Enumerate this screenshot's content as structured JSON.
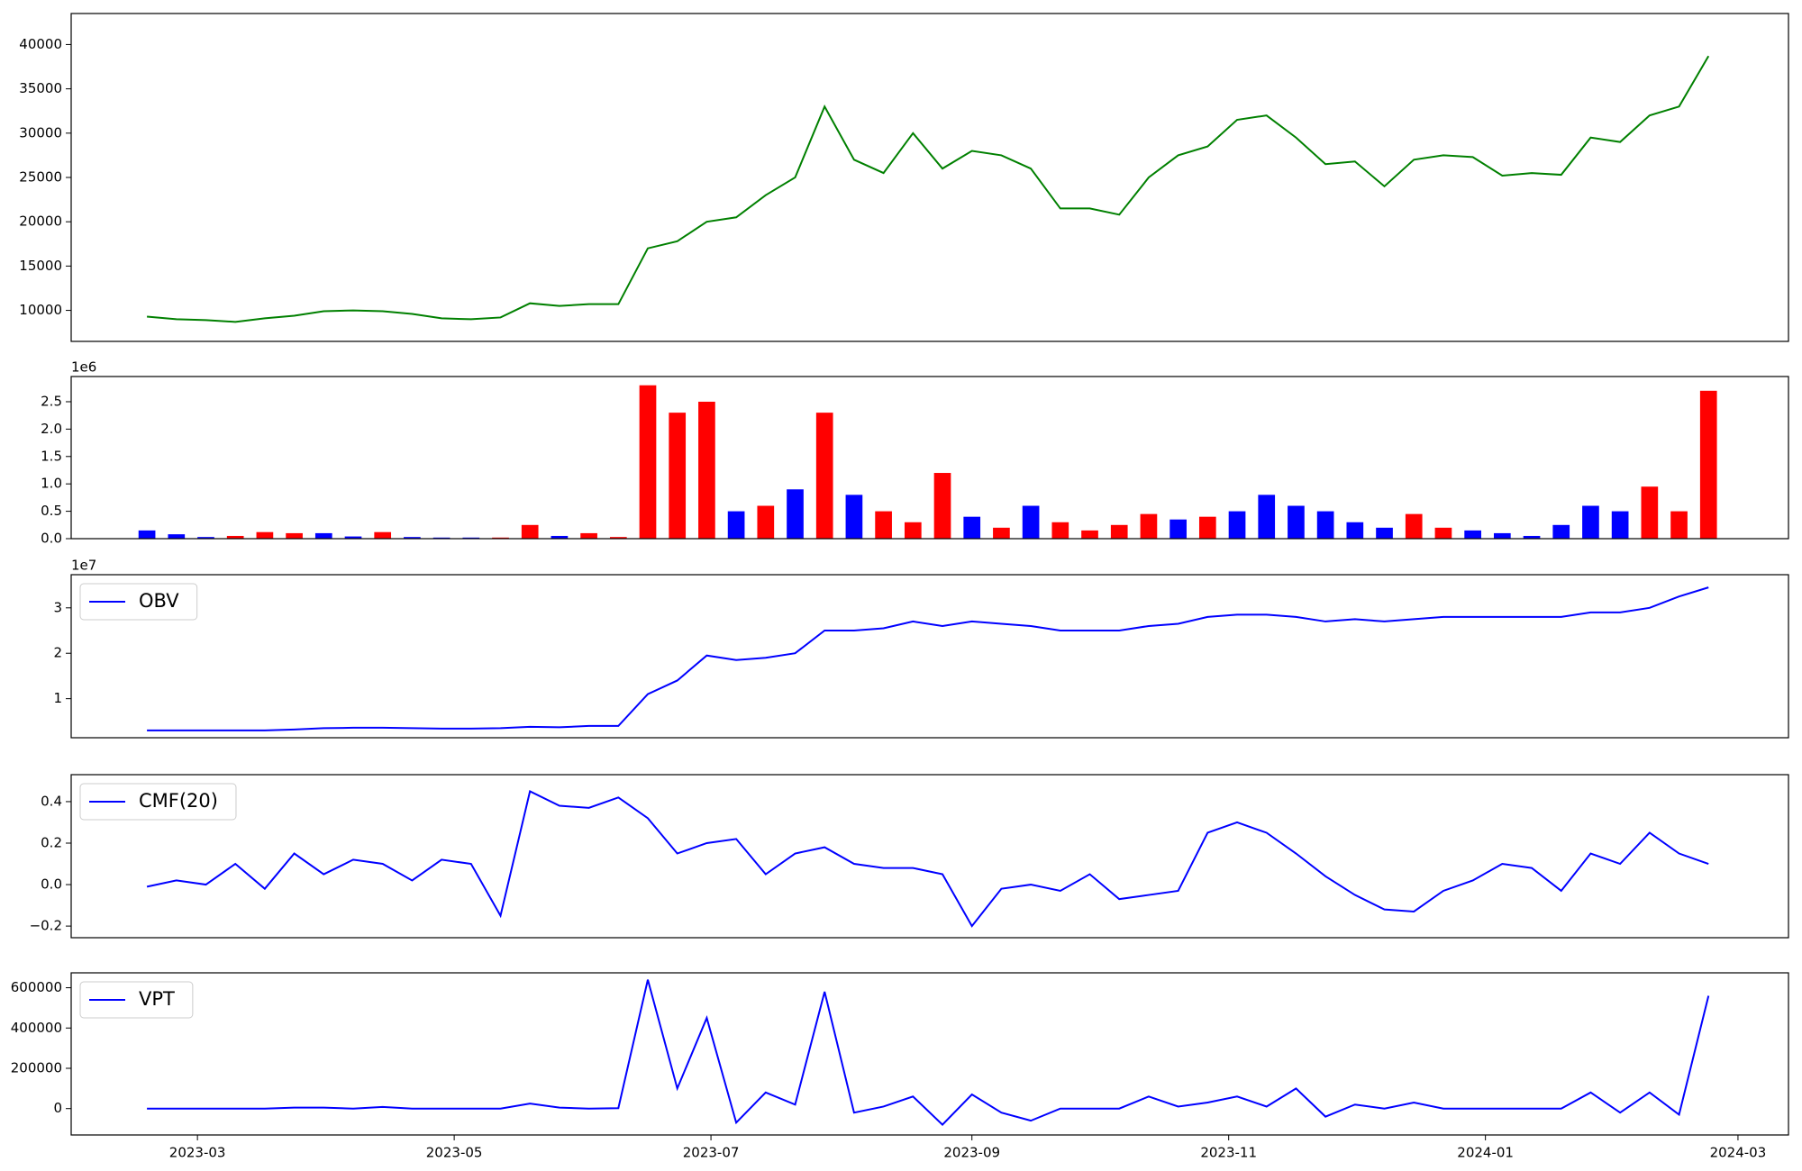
{
  "chart_data": [
    {
      "type": "line",
      "xlim": [
        19387,
        19795
      ],
      "ylim": [
        6500,
        43500
      ],
      "yticks": [
        10000,
        15000,
        20000,
        25000,
        30000,
        35000,
        40000
      ],
      "x": [
        19405,
        19412,
        19419,
        19426,
        19433,
        19440,
        19447,
        19454,
        19461,
        19468,
        19475,
        19482,
        19489,
        19496,
        19503,
        19510,
        19517,
        19524,
        19531,
        19538,
        19545,
        19552,
        19559,
        19566,
        19573,
        19580,
        19587,
        19594,
        19601,
        19608,
        19615,
        19622,
        19629,
        19636,
        19643,
        19650,
        19657,
        19664,
        19671,
        19678,
        19685,
        19692,
        19699,
        19706,
        19713,
        19720,
        19727,
        19734,
        19741,
        19748,
        19755,
        19762,
        19769,
        19776
      ],
      "series": [
        {
          "color": "#008000",
          "values": [
            9300,
            9000,
            8900,
            8700,
            9100,
            9400,
            9900,
            10000,
            9900,
            9600,
            9100,
            9000,
            9200,
            10800,
            10500,
            10700,
            10700,
            17000,
            17800,
            20000,
            20500,
            23000,
            25000,
            33000,
            27000,
            25500,
            30000,
            26000,
            28000,
            27500,
            26000,
            21500,
            21500,
            20800,
            25000,
            27500,
            28500,
            31500,
            32000,
            29500,
            26500,
            26800,
            24000,
            27000,
            27500,
            27300,
            25200,
            25500,
            25300,
            29500,
            29000,
            32000,
            33000,
            38700
          ]
        }
      ]
    },
    {
      "type": "bar",
      "xlim": [
        19387,
        19795
      ],
      "ylim": [
        0,
        2.96
      ],
      "offset_label": "1e6",
      "yticks": [
        {
          "value": 0,
          "label": "0.0"
        },
        0.5,
        {
          "value": 1,
          "label": "1.0"
        },
        1.5,
        {
          "value": 2,
          "label": "2.0"
        },
        2.5
      ],
      "x": [
        19405,
        19412,
        19419,
        19426,
        19433,
        19440,
        19447,
        19454,
        19461,
        19468,
        19475,
        19482,
        19489,
        19496,
        19503,
        19510,
        19517,
        19524,
        19531,
        19538,
        19545,
        19552,
        19559,
        19566,
        19573,
        19580,
        19587,
        19594,
        19601,
        19608,
        19615,
        19622,
        19629,
        19636,
        19643,
        19650,
        19657,
        19664,
        19671,
        19678,
        19685,
        19692,
        19699,
        19706,
        19713,
        19720,
        19727,
        19734,
        19741,
        19748,
        19755,
        19762,
        19769,
        19776
      ],
      "values": [
        0.15,
        0.08,
        0.03,
        0.05,
        0.12,
        0.1,
        0.1,
        0.04,
        0.12,
        0.03,
        0.02,
        0.02,
        0.02,
        0.25,
        0.05,
        0.1,
        0.03,
        2.8,
        2.3,
        2.5,
        0.5,
        0.6,
        0.9,
        2.3,
        0.8,
        0.5,
        0.3,
        1.2,
        0.4,
        0.2,
        0.6,
        0.3,
        0.15,
        0.25,
        0.45,
        0.35,
        0.4,
        0.5,
        0.8,
        0.6,
        0.5,
        0.3,
        0.2,
        0.45,
        0.2,
        0.15,
        0.1,
        0.05,
        0.25,
        0.6,
        0.5,
        0.95,
        0.5,
        2.7
      ],
      "colors": [
        "blue",
        "blue",
        "blue",
        "red",
        "red",
        "red",
        "blue",
        "blue",
        "red",
        "blue",
        "blue",
        "blue",
        "red",
        "red",
        "blue",
        "red",
        "red",
        "red",
        "red",
        "red",
        "blue",
        "red",
        "blue",
        "red",
        "blue",
        "red",
        "red",
        "red",
        "blue",
        "red",
        "blue",
        "red",
        "red",
        "red",
        "red",
        "blue",
        "red",
        "blue",
        "blue",
        "blue",
        "blue",
        "blue",
        "blue",
        "red",
        "red",
        "blue",
        "blue",
        "blue",
        "blue",
        "blue",
        "blue",
        "red",
        "red",
        "red"
      ]
    },
    {
      "type": "line",
      "xlim": [
        19387,
        19795
      ],
      "ylim": [
        0.14,
        3.73
      ],
      "offset_label": "1e7",
      "yticks": [
        1,
        2,
        3
      ],
      "legend": "upper left",
      "x": [
        19405,
        19412,
        19419,
        19426,
        19433,
        19440,
        19447,
        19454,
        19461,
        19468,
        19475,
        19482,
        19489,
        19496,
        19503,
        19510,
        19517,
        19524,
        19531,
        19538,
        19545,
        19552,
        19559,
        19566,
        19573,
        19580,
        19587,
        19594,
        19601,
        19608,
        19615,
        19622,
        19629,
        19636,
        19643,
        19650,
        19657,
        19664,
        19671,
        19678,
        19685,
        19692,
        19699,
        19706,
        19713,
        19720,
        19727,
        19734,
        19741,
        19748,
        19755,
        19762,
        19769,
        19776
      ],
      "series": [
        {
          "name": "OBV",
          "color": "#0000ff",
          "values": [
            0.3,
            0.3,
            0.3,
            0.3,
            0.3,
            0.32,
            0.35,
            0.36,
            0.36,
            0.35,
            0.34,
            0.34,
            0.35,
            0.38,
            0.37,
            0.4,
            0.4,
            1.1,
            1.4,
            1.95,
            1.85,
            1.9,
            2.0,
            2.5,
            2.5,
            2.55,
            2.7,
            2.6,
            2.7,
            2.65,
            2.6,
            2.5,
            2.5,
            2.5,
            2.6,
            2.65,
            2.8,
            2.85,
            2.85,
            2.8,
            2.7,
            2.75,
            2.7,
            2.75,
            2.8,
            2.8,
            2.8,
            2.8,
            2.8,
            2.9,
            2.9,
            3.0,
            3.25,
            3.45
          ]
        }
      ]
    },
    {
      "type": "line",
      "xlim": [
        19387,
        19795
      ],
      "ylim": [
        -0.256,
        0.53
      ],
      "legend": "upper left",
      "yticks": [
        {
          "value": -0.2,
          "label": "−0.2"
        },
        {
          "value": 0,
          "label": "0.0"
        },
        0.2,
        0.4
      ],
      "x": [
        19405,
        19412,
        19419,
        19426,
        19433,
        19440,
        19447,
        19454,
        19461,
        19468,
        19475,
        19482,
        19489,
        19496,
        19503,
        19510,
        19517,
        19524,
        19531,
        19538,
        19545,
        19552,
        19559,
        19566,
        19573,
        19580,
        19587,
        19594,
        19601,
        19608,
        19615,
        19622,
        19629,
        19636,
        19643,
        19650,
        19657,
        19664,
        19671,
        19678,
        19685,
        19692,
        19699,
        19706,
        19713,
        19720,
        19727,
        19734,
        19741,
        19748,
        19755,
        19762,
        19769,
        19776
      ],
      "series": [
        {
          "name": "CMF(20)",
          "color": "#0000ff",
          "values": [
            -0.01,
            0.02,
            0.0,
            0.1,
            -0.02,
            0.15,
            0.05,
            0.12,
            0.1,
            0.02,
            0.12,
            0.1,
            -0.15,
            0.45,
            0.38,
            0.37,
            0.42,
            0.32,
            0.15,
            0.2,
            0.22,
            0.05,
            0.15,
            0.18,
            0.1,
            0.08,
            0.08,
            0.05,
            -0.2,
            -0.02,
            0.0,
            -0.03,
            0.05,
            -0.07,
            -0.05,
            -0.03,
            0.25,
            0.3,
            0.25,
            0.15,
            0.04,
            -0.05,
            -0.12,
            -0.13,
            -0.03,
            0.02,
            0.1,
            0.08,
            -0.03,
            0.15,
            0.1,
            0.25,
            0.15,
            0.1
          ]
        }
      ]
    },
    {
      "type": "line",
      "xlim": [
        19387,
        19795
      ],
      "ylim": [
        -131000,
        674000
      ],
      "legend": "upper left",
      "yticks": [
        0,
        200000,
        400000,
        600000
      ],
      "xticks": [
        {
          "value": 19417,
          "label": "2023-03"
        },
        {
          "value": 19478,
          "label": "2023-05"
        },
        {
          "value": 19539,
          "label": "2023-07"
        },
        {
          "value": 19601,
          "label": "2023-09"
        },
        {
          "value": 19662,
          "label": "2023-11"
        },
        {
          "value": 19723,
          "label": "2024-01"
        },
        {
          "value": 19783,
          "label": "2024-03"
        }
      ],
      "x": [
        19405,
        19412,
        19419,
        19426,
        19433,
        19440,
        19447,
        19454,
        19461,
        19468,
        19475,
        19482,
        19489,
        19496,
        19503,
        19510,
        19517,
        19524,
        19531,
        19538,
        19545,
        19552,
        19559,
        19566,
        19573,
        19580,
        19587,
        19594,
        19601,
        19608,
        19615,
        19622,
        19629,
        19636,
        19643,
        19650,
        19657,
        19664,
        19671,
        19678,
        19685,
        19692,
        19699,
        19706,
        19713,
        19720,
        19727,
        19734,
        19741,
        19748,
        19755,
        19762,
        19769,
        19776
      ],
      "series": [
        {
          "name": "VPT",
          "color": "#0000ff",
          "values": [
            0,
            0,
            0,
            0,
            0,
            5000,
            5000,
            0,
            8000,
            0,
            0,
            0,
            0,
            25000,
            5000,
            0,
            2000,
            640000,
            100000,
            450000,
            -70000,
            80000,
            20000,
            580000,
            -20000,
            10000,
            60000,
            -80000,
            70000,
            -20000,
            -60000,
            0,
            0,
            0,
            60000,
            10000,
            30000,
            60000,
            10000,
            100000,
            -40000,
            20000,
            0,
            30000,
            0,
            0,
            0,
            0,
            0,
            80000,
            -20000,
            80000,
            -30000,
            560000
          ]
        }
      ]
    }
  ]
}
